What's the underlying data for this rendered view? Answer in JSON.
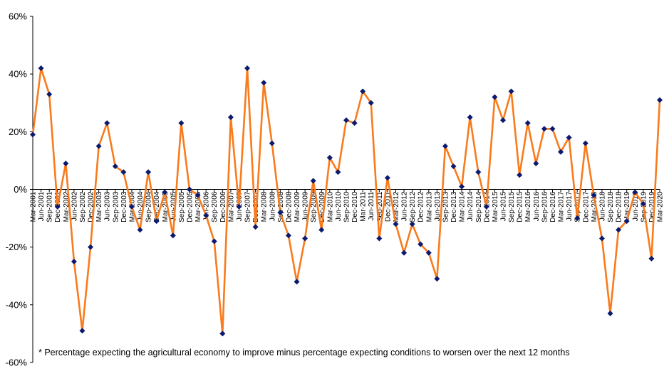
{
  "chart_data": {
    "type": "line",
    "title": "",
    "xlabel": "",
    "ylabel": "",
    "ylim": [
      -60,
      60
    ],
    "y_ticks": [
      "60%",
      "40%",
      "20%",
      "0%",
      "-20%",
      "-40%",
      "-60%"
    ],
    "y_tick_values": [
      60,
      40,
      20,
      0,
      -20,
      -40,
      -60
    ],
    "grid": false,
    "legend": "none",
    "colors": {
      "line": "#f97b1c",
      "marker": "#0b1a6e",
      "axis": "#000000"
    },
    "marker": "diamond",
    "footnote": "* Percentage expecting the agricultural economy to improve minus percentage expecting conditions to worsen over the next 12 months",
    "x": [
      "Mar-2001",
      "Jun-2001",
      "Sep-2001",
      "Dec-2001",
      "Mar-2002",
      "Jun-2002",
      "Sep-2002",
      "Dec-2002",
      "Mar-2003",
      "Jun-2003",
      "Sep-2003",
      "Dec-2003",
      "Mar-2004",
      "Jun-2004",
      "Sep-2004",
      "Dec-2004",
      "Mar-2005",
      "Jun-2005",
      "Sep-2005",
      "Dec-2005",
      "Mar-2006",
      "Jun-2006",
      "Sep-2006",
      "Dec-2006",
      "Mar-2007",
      "Jun-2007",
      "Sep-2007",
      "Dec-2007",
      "Mar-2008",
      "Jun-2008",
      "Sep-2008",
      "Dec-2008",
      "Mar-2009",
      "Jun-2009",
      "Sep-2009",
      "Dec-2009",
      "Mar-2010",
      "Jun-2010",
      "Sep-2010",
      "Dec-2010",
      "Mar-2011",
      "Jun-2011",
      "Sep-2011",
      "Dec-2011",
      "Mar-2012",
      "Jun-2012",
      "Sep-2012",
      "Dec-2012",
      "Mar-2013",
      "Jun-2013",
      "Sep-2013",
      "Dec-2013",
      "Mar-2014",
      "Jun-2014",
      "Sep-2014",
      "Dec-2014",
      "Mar-2015",
      "Jun-2015",
      "Sep-2015",
      "Dec-2015",
      "Mar-2016",
      "Jun-2016",
      "Sep-2016",
      "Dec-2016",
      "Mar-2017",
      "Jun-2017",
      "Sep-2017",
      "Dec-2017",
      "Mar-2018",
      "Jun-2018",
      "Sep-2018",
      "Dec-2018",
      "Mar-2019",
      "Jun-2019",
      "Sep-2019",
      "Dec-2019",
      "Mar-2020"
    ],
    "series": [
      {
        "values": [
          19,
          42,
          33,
          -6,
          9,
          -25,
          -49,
          -20,
          15,
          23,
          8,
          6,
          -6,
          -14,
          6,
          -11,
          -1,
          -16,
          23,
          0,
          -2,
          -9,
          -18,
          -50,
          25,
          -6,
          42,
          -13,
          37,
          16,
          -8,
          -16,
          -32,
          -17,
          3,
          -14,
          11,
          6,
          24,
          23,
          34,
          30,
          -17,
          4,
          -12,
          -22,
          -12,
          -19,
          -22,
          -31,
          15,
          8,
          1,
          25,
          6,
          -6,
          32,
          24,
          34,
          5,
          23,
          9,
          21,
          21,
          13,
          18,
          -10,
          16,
          -2,
          -17,
          -43,
          -14,
          -11,
          -1,
          -5,
          -24,
          31
        ]
      }
    ]
  }
}
